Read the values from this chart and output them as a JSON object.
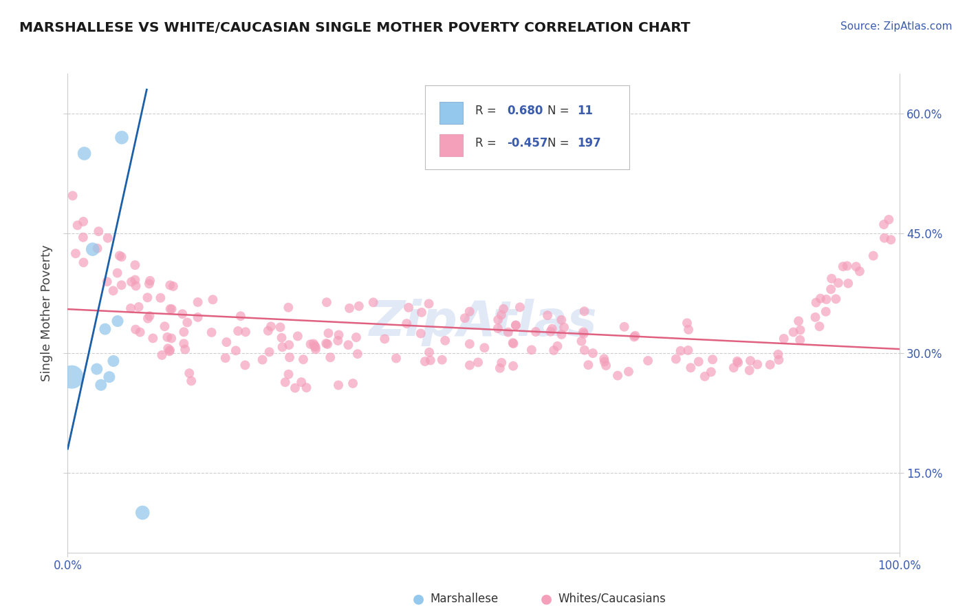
{
  "title": "MARSHALLESE VS WHITE/CAUCASIAN SINGLE MOTHER POVERTY CORRELATION CHART",
  "source": "Source: ZipAtlas.com",
  "ylabel": "Single Mother Poverty",
  "xlim": [
    0,
    1
  ],
  "ylim": [
    0.05,
    0.65
  ],
  "yticks": [
    0.15,
    0.3,
    0.45,
    0.6
  ],
  "xticks": [
    0.0,
    1.0
  ],
  "r_marshallese": 0.68,
  "n_marshallese": 11,
  "r_white": -0.457,
  "n_white": 197,
  "marshallese_color": "#94C8EC",
  "white_color": "#F4A0BB",
  "trend_marshallese_color": "#1B5FA8",
  "trend_white_color": "#E06080",
  "background_color": "#FFFFFF",
  "watermark": "ZipAtlas",
  "grid_color": "#C8C8C8",
  "title_color": "#1a1a1a",
  "axis_color": "#3B5BAD",
  "axis_tick_color": "#3B5BAD",
  "marshallese_x": [
    0.005,
    0.02,
    0.03,
    0.035,
    0.04,
    0.045,
    0.05,
    0.055,
    0.06,
    0.065,
    0.09
  ],
  "marshallese_y": [
    0.27,
    0.55,
    0.43,
    0.28,
    0.26,
    0.33,
    0.27,
    0.29,
    0.34,
    0.57,
    0.1
  ],
  "marshallese_sizes": [
    600,
    200,
    200,
    150,
    150,
    150,
    150,
    150,
    150,
    200,
    220
  ],
  "trend_marsh_x0": 0.0,
  "trend_marsh_y0": 0.18,
  "trend_marsh_x1": 0.095,
  "trend_marsh_y1": 0.63,
  "trend_marsh_dash_x0": 0.0,
  "trend_marsh_dash_y0": 0.18,
  "trend_marsh_dash_x1": 0.03,
  "trend_marsh_dash_y1": 0.36,
  "trend_white_x0": 0.0,
  "trend_white_y0": 0.355,
  "trend_white_x1": 1.0,
  "trend_white_y1": 0.305
}
